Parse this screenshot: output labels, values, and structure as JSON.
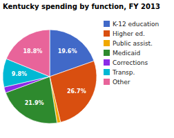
{
  "chart_data": {
    "type": "pie",
    "title": "Kentucky spending by function, FY 2013",
    "categories": [
      "K-12 education",
      "Higher ed.",
      "Public assist.",
      "Medicaid",
      "Corrections",
      "Transp.",
      "Other"
    ],
    "values": [
      19.6,
      26.7,
      1.2,
      21.9,
      2.0,
      9.8,
      18.8
    ],
    "value_labels": [
      "19.6%",
      "26.7%",
      null,
      "21.9%",
      null,
      "9.8%",
      "18.8%"
    ],
    "colors": [
      "#4169c8",
      "#d94f10",
      "#f0a800",
      "#2e8a2e",
      "#8b2be8",
      "#00b8d4",
      "#e8649a"
    ],
    "data_labels": true,
    "legend": "right"
  }
}
